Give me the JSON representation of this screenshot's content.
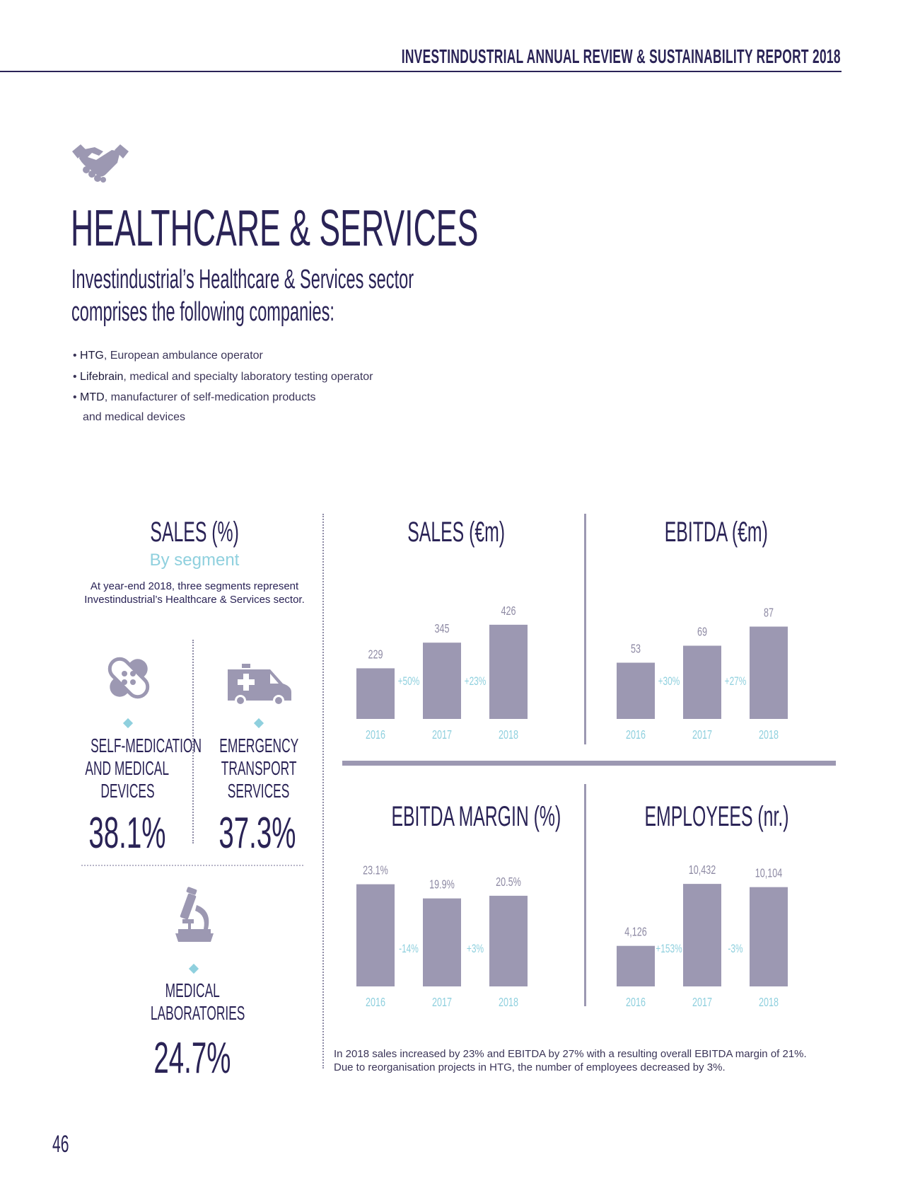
{
  "header": {
    "title": "INVESTINDUSTRIAL ANNUAL REVIEW & SUSTAINABILITY REPORT 2018"
  },
  "section": {
    "icon": "handshake-icon",
    "title": "HEALTHCARE & SERVICES",
    "subtitle_line1": "Investindustrial’s Healthcare & Services sector",
    "subtitle_line2": "comprises the following companies:"
  },
  "companies": [
    {
      "name": "HTG",
      "desc": ", European ambulance operator"
    },
    {
      "name": "Lifebrain",
      "desc": ", medical and specialty laboratory testing operator"
    },
    {
      "name": "MTD",
      "desc": ", manufacturer of self-medication products",
      "desc2": "and medical devices"
    }
  ],
  "segments": {
    "title": "SALES (%)",
    "subtitle": "By segment",
    "intro_line1": "At year-end 2018, three segments represent",
    "intro_line2": "Investindustrial’s Healthcare & Services sector.",
    "items": [
      {
        "icon": "bandage-icon",
        "label_lines": [
          "SELF-MEDICATION",
          "AND MEDICAL",
          "DEVICES"
        ],
        "value": "38.1%"
      },
      {
        "icon": "ambulance-icon",
        "label_lines": [
          "EMERGENCY",
          "TRANSPORT",
          "SERVICES"
        ],
        "value": "37.3%"
      },
      {
        "icon": "microscope-icon",
        "label_lines": [
          "MEDICAL",
          "LABORATORIES"
        ],
        "value": "24.7%"
      }
    ]
  },
  "chart_data": [
    {
      "type": "bar",
      "title": "SALES (€m)",
      "categories": [
        "2016",
        "2017",
        "2018"
      ],
      "values": [
        229,
        345,
        426
      ],
      "value_labels": [
        "229",
        "345",
        "426"
      ],
      "growth_labels": [
        "+50%",
        "+23%"
      ]
    },
    {
      "type": "bar",
      "title": "EBITDA (€m)",
      "categories": [
        "2016",
        "2017",
        "2018"
      ],
      "values": [
        53,
        69,
        87
      ],
      "value_labels": [
        "53",
        "69",
        "87"
      ],
      "growth_labels": [
        "+30%",
        "+27%"
      ]
    },
    {
      "type": "bar",
      "title": "EBITDA MARGIN (%)",
      "categories": [
        "2016",
        "2017",
        "2018"
      ],
      "values": [
        23.1,
        19.9,
        20.5
      ],
      "value_labels": [
        "23.1%",
        "19.9%",
        "20.5%"
      ],
      "growth_labels": [
        "-14%",
        "+3%"
      ]
    },
    {
      "type": "bar",
      "title": "EMPLOYEES (nr.)",
      "categories": [
        "2016",
        "2017",
        "2018"
      ],
      "values": [
        4126,
        10432,
        10104
      ],
      "value_labels": [
        "4,126",
        "10,432",
        "10,104"
      ],
      "growth_labels": [
        "+153%",
        "-3%"
      ]
    }
  ],
  "footnote": {
    "line1": "In 2018 sales increased by 23% and EBITDA by 27% with a resulting overall EBITDA margin of 21%.",
    "line2": "Due to reorganisation projects in HTG, the number of employees decreased by 3%."
  },
  "page_number": "46",
  "colors": {
    "navy": "#2a2356",
    "bar": "#9c98b2",
    "accent": "#8fd0de",
    "rule": "#9c98b2"
  }
}
